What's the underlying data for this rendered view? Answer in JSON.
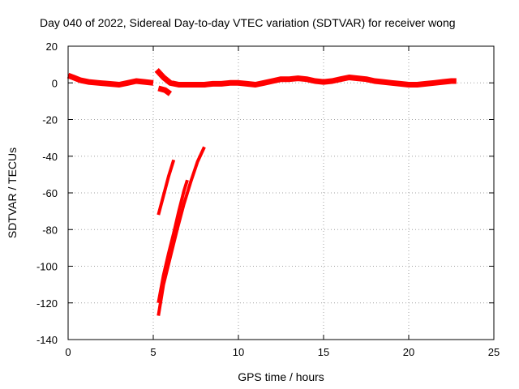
{
  "chart_data": {
    "type": "line",
    "title": "Day 040 of 2022, Sidereal Day-to-day VTEC variation (SDTVAR) for receiver wong",
    "xlabel": "GPS time / hours",
    "ylabel": "SDTVAR / TECUs",
    "xlim": [
      0,
      25
    ],
    "ylim": [
      -140,
      20
    ],
    "xticks": [
      0,
      5,
      10,
      15,
      20,
      25
    ],
    "yticks": [
      -140,
      -120,
      -100,
      -80,
      -60,
      -40,
      -20,
      0,
      20
    ],
    "grid": true,
    "color": "#ff0000",
    "series": [
      {
        "name": "main-arc",
        "style": "thick",
        "x": [
          0.0,
          0.3,
          0.7,
          1.2,
          1.8,
          2.4,
          3.0,
          3.5,
          4.0,
          4.5,
          5.0
        ],
        "y": [
          4,
          3,
          1.5,
          0.5,
          0,
          -0.5,
          -1,
          0,
          1,
          0.5,
          0
        ]
      },
      {
        "name": "dip-arc",
        "style": "thick",
        "x": [
          5.3,
          5.7,
          6.0
        ],
        "y": [
          -3,
          -4,
          -6
        ]
      },
      {
        "name": "long-arc",
        "style": "thick",
        "x": [
          5.2,
          5.6,
          6.0,
          6.5,
          7.0,
          7.5,
          8.0,
          8.5,
          9.0,
          9.5,
          10.0,
          10.5,
          11.0,
          11.5,
          12.0,
          12.5,
          13.0,
          13.5,
          14.0,
          14.5,
          15.0,
          15.5,
          16.0,
          16.5,
          17.0,
          17.5,
          18.0,
          18.5,
          19.0,
          19.5,
          20.0,
          20.5,
          21.0,
          21.5,
          22.0,
          22.5,
          22.8
        ],
        "y": [
          7,
          3,
          0,
          -1,
          -1,
          -1,
          -1,
          -0.5,
          -0.5,
          0,
          0,
          -0.5,
          -1,
          0,
          1,
          2,
          2,
          2.5,
          2,
          1,
          0.5,
          1,
          2,
          3,
          2.5,
          2,
          1,
          0.5,
          0,
          -0.5,
          -1,
          -1,
          -0.5,
          0,
          0.5,
          1,
          1
        ]
      },
      {
        "name": "descent-arc-1",
        "style": "normal",
        "x": [
          5.3,
          5.5,
          5.7,
          5.9,
          6.1,
          6.2
        ],
        "y": [
          -72,
          -65,
          -58,
          -51,
          -45,
          -42
        ]
      },
      {
        "name": "descent-arc-2",
        "style": "normal",
        "x": [
          5.3,
          5.6,
          6.0,
          6.4,
          6.8,
          7.2,
          7.6,
          8.0
        ],
        "y": [
          -127,
          -110,
          -95,
          -80,
          -66,
          -54,
          -43,
          -35
        ]
      },
      {
        "name": "descent-arc-3",
        "style": "normal",
        "x": [
          5.3,
          5.6,
          5.9,
          6.2,
          6.5,
          6.8,
          7.0
        ],
        "y": [
          -120,
          -105,
          -93,
          -82,
          -70,
          -59,
          -53
        ]
      }
    ]
  }
}
